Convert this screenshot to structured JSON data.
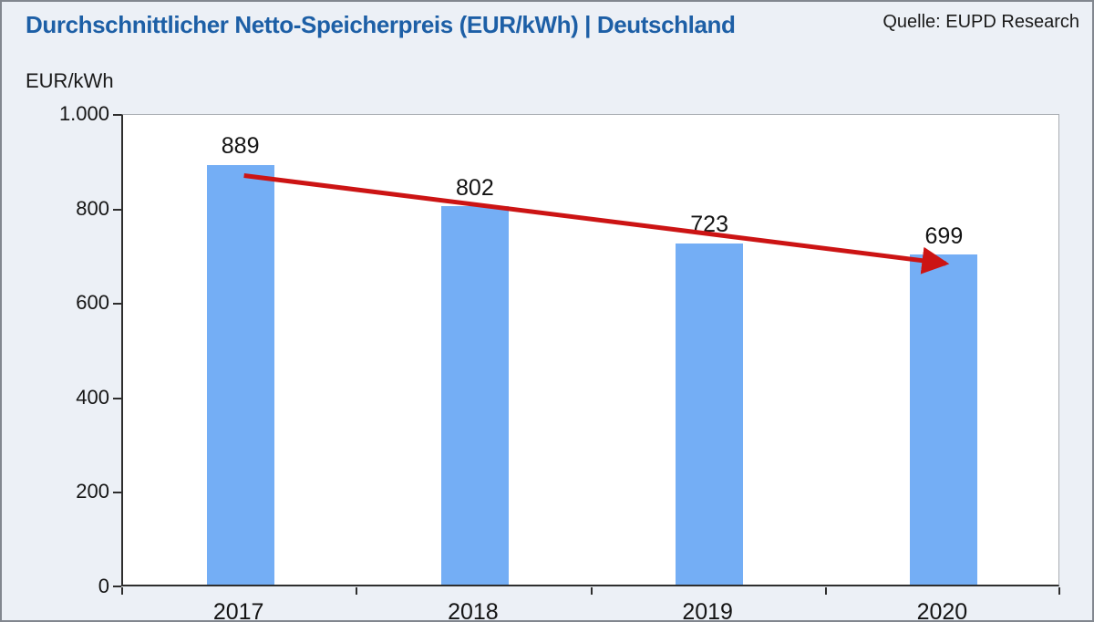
{
  "header": {
    "title": "Durchschnittlicher Netto-Speicherpreis (EUR/kWh) | Deutschland",
    "source": "Quelle: EUPD Research"
  },
  "colors": {
    "background": "#ecf0f6",
    "plot_background": "#ffffff",
    "bar": "#74aef5",
    "trend_arrow": "#cc1414",
    "title_text": "#1d5fa6",
    "axis_line": "#2e2e2e",
    "plot_border": "#a9adb3"
  },
  "chart_data": {
    "type": "bar",
    "title": "Durchschnittlicher Netto-Speicherpreis (EUR/kWh) | Deutschland",
    "source": "Quelle: EUPD Research",
    "categories": [
      "2017",
      "2018",
      "2019",
      "2020"
    ],
    "values": [
      889,
      802,
      723,
      699
    ],
    "value_labels": [
      "889",
      "802",
      "723",
      "699"
    ],
    "xlabel": "",
    "ylabel": "EUR/kWh",
    "ylim": [
      0,
      1000
    ],
    "yticks": [
      0,
      200,
      400,
      600,
      800,
      1000
    ],
    "ytick_labels": [
      "0",
      "200",
      "400",
      "600",
      "800",
      "1.000"
    ],
    "grid": false,
    "legend": "none",
    "bar_color": "#74aef5",
    "annotations": {
      "trend_arrow": {
        "description": "red arrow from top of 2017 bar to top of 2020 bar indicating falling prices",
        "from_index": 0,
        "to_index": 3,
        "color": "#cc1414"
      }
    }
  }
}
